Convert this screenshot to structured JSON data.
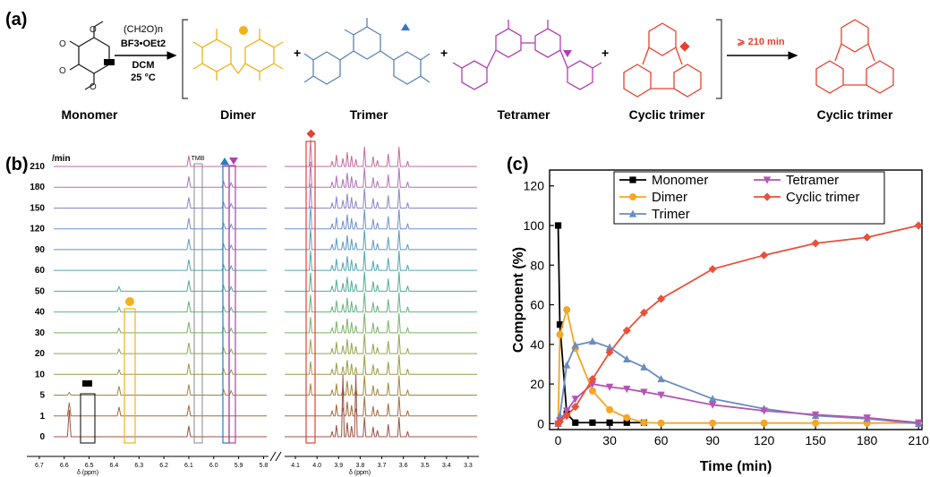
{
  "panels": {
    "a": "(a)",
    "b": "(b)",
    "c": "(c)"
  },
  "scheme": {
    "reagent1": "(CH2O)n",
    "reagent2": "BF3•OEt2",
    "solvent": "DCM",
    "temperature": "25 °C",
    "condition2": "⩾ 210 min",
    "labels": [
      "Monomer",
      "Dimer",
      "Trimer",
      "Tetramer",
      "Cyclic trimer",
      "Cyclic trimer"
    ],
    "plus": "+",
    "colors": {
      "monomer": "#222222",
      "dimer": "#f2b21b",
      "trimer": "#5b84b8",
      "tetramer": "#b23fb0",
      "cyclic": "#e8412f"
    }
  },
  "nmr": {
    "unit_label": "/min",
    "times": [
      "210",
      "180",
      "150",
      "120",
      "90",
      "60",
      "50",
      "40",
      "30",
      "20",
      "10",
      "5",
      "1",
      "0"
    ],
    "tmb_label": "TMB",
    "left_axis_ticks": [
      "6.7",
      "6.6",
      "6.5",
      "6.4",
      "6.3",
      "6.2",
      "6.1",
      "6.0",
      "5.9",
      "5.8"
    ],
    "right_axis_ticks": [
      "4.1",
      "4.0",
      "3.9",
      "3.8",
      "3.7",
      "3.6",
      "3.5",
      "3.4",
      "3.3"
    ],
    "axis_label": "δ (ppm)",
    "trace_colors": [
      "#c9679a",
      "#b070b8",
      "#8a84c8",
      "#6f8fcc",
      "#5b99c2",
      "#4ea6b2",
      "#4eae98",
      "#63b27e",
      "#7bb266",
      "#8ea84d",
      "#9d9a3e",
      "#a5853c",
      "#a3693e",
      "#9b5044"
    ]
  },
  "chart_data": {
    "type": "line",
    "title": "",
    "xlabel": "Time (min)",
    "ylabel": "Component (%)",
    "xlim": [
      -5,
      212
    ],
    "ylim": [
      -3,
      128
    ],
    "xticks": [
      0,
      30,
      60,
      90,
      120,
      150,
      180,
      210
    ],
    "yticks": [
      0,
      20,
      40,
      60,
      80,
      100,
      120
    ],
    "legend_position": "top-right",
    "series": [
      {
        "name": "Monomer",
        "color": "#000000",
        "marker": "square",
        "x": [
          0,
          1,
          5,
          10,
          20,
          30,
          40,
          50
        ],
        "y": [
          100,
          50,
          5,
          0.5,
          0.5,
          0.5,
          0.5,
          0.5
        ]
      },
      {
        "name": "Dimer",
        "color": "#f5a623",
        "marker": "circle",
        "x": [
          0,
          1,
          5,
          10,
          20,
          30,
          40,
          50,
          60,
          90,
          120,
          150,
          180,
          210
        ],
        "y": [
          0,
          45,
          57.5,
          38,
          16.5,
          7,
          3,
          0.5,
          0.3,
          0.3,
          0.3,
          0.3,
          0.3,
          0.3
        ]
      },
      {
        "name": "Trimer",
        "color": "#6b8cbf",
        "marker": "triangle-up",
        "x": [
          0,
          1,
          5,
          10,
          20,
          30,
          40,
          50,
          60,
          90,
          120,
          150,
          180,
          210
        ],
        "y": [
          0,
          4,
          29.5,
          39.5,
          41.5,
          38.5,
          32.5,
          28.5,
          22.5,
          12.5,
          7.5,
          4,
          2.5,
          0
        ]
      },
      {
        "name": "Tetramer",
        "color": "#b455b4",
        "marker": "triangle-down",
        "x": [
          0,
          1,
          5,
          10,
          20,
          30,
          40,
          50,
          60,
          90,
          120,
          150,
          180,
          210
        ],
        "y": [
          0,
          1.5,
          6.5,
          12.5,
          20,
          18.5,
          17.5,
          16,
          14.5,
          9.5,
          6.5,
          4.5,
          3,
          0.5
        ]
      },
      {
        "name": "Cyclic trimer",
        "color": "#e8503a",
        "marker": "diamond",
        "x": [
          0,
          1,
          5,
          10,
          20,
          30,
          40,
          50,
          60,
          90,
          120,
          150,
          180,
          210
        ],
        "y": [
          0,
          1,
          4,
          8.5,
          22.5,
          36,
          47,
          56,
          63,
          78,
          85,
          91,
          94,
          100
        ]
      }
    ]
  }
}
